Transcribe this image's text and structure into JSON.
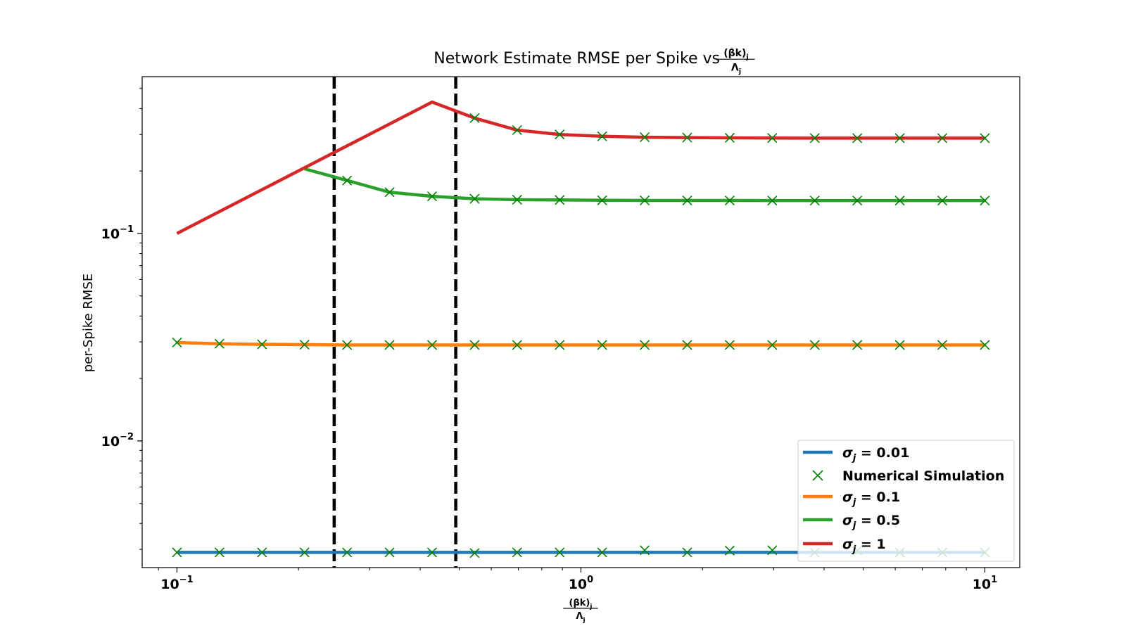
{
  "chart_data": {
    "type": "line",
    "title": "Network Estimate RMSE per Spike vs",
    "title_fraction": {
      "numerator": "(βk)",
      "numerator_sub": "j",
      "denominator": "Λ",
      "denominator_sub": "j"
    },
    "xlabel_fraction": {
      "numerator": "(βk)",
      "numerator_sub": "j",
      "denominator": "Λ",
      "denominator_sub": "j"
    },
    "ylabel": "per-Spike RMSE",
    "x_scale": "log",
    "y_scale": "log",
    "xlim": [
      0.082,
      12.2
    ],
    "ylim": [
      0.00245,
      0.57
    ],
    "x_ticks": [
      {
        "value": 0.1,
        "base": "10",
        "exp": "−1"
      },
      {
        "value": 1,
        "base": "10",
        "exp": "0"
      },
      {
        "value": 10,
        "base": "10",
        "exp": "1"
      }
    ],
    "y_ticks": [
      {
        "value": 0.1,
        "base": "10",
        "exp": "−1"
      },
      {
        "value": 0.01,
        "base": "10",
        "exp": "−2"
      }
    ],
    "vlines": [
      0.245,
      0.49
    ],
    "series": [
      {
        "name": "σ_j = 0.01",
        "label_sigma": "σ",
        "label_sub": "j",
        "label_value": " = 0.01",
        "color": "#1f77b4",
        "x": [
          0.1,
          10
        ],
        "y": [
          0.0029,
          0.0029
        ],
        "markers": {
          "x": [
            0.1,
            0.1274,
            0.1624,
            0.2069,
            0.2637,
            0.336,
            0.4281,
            0.5456,
            0.6952,
            0.8859,
            1.1288,
            1.4384,
            1.833,
            2.3357,
            2.9764,
            3.7927,
            4.8329,
            6.1585,
            7.8476,
            10
          ],
          "y": [
            0.0029,
            0.0029,
            0.0029,
            0.0029,
            0.0029,
            0.0029,
            0.0029,
            0.00288,
            0.0029,
            0.0029,
            0.0029,
            0.00297,
            0.0029,
            0.00296,
            0.00297,
            0.0029,
            0.00296,
            0.0029,
            0.0029,
            0.0029
          ]
        }
      },
      {
        "name": "σ_j = 0.1",
        "label_sigma": "σ",
        "label_sub": "j",
        "label_value": " = 0.1",
        "color": "#ff7f0e",
        "x": [
          0.1,
          0.1274,
          0.1624,
          0.2069,
          0.2637,
          0.336,
          0.4281,
          0.5456,
          0.6952,
          0.8859,
          1.1288,
          1.4384,
          1.833,
          2.3357,
          2.9764,
          3.7927,
          4.8329,
          6.1585,
          7.8476,
          10
        ],
        "y": [
          0.0298,
          0.0294,
          0.0292,
          0.0291,
          0.029,
          0.029,
          0.029,
          0.029,
          0.029,
          0.029,
          0.029,
          0.029,
          0.029,
          0.029,
          0.029,
          0.029,
          0.029,
          0.029,
          0.029,
          0.029
        ],
        "markers": {
          "x": [
            0.1,
            0.1274,
            0.1624,
            0.2069,
            0.2637,
            0.336,
            0.4281,
            0.5456,
            0.6952,
            0.8859,
            1.1288,
            1.4384,
            1.833,
            2.3357,
            2.9764,
            3.7927,
            4.8329,
            6.1585,
            7.8476,
            10
          ],
          "y": [
            0.0298,
            0.0294,
            0.0292,
            0.0291,
            0.029,
            0.029,
            0.029,
            0.029,
            0.029,
            0.029,
            0.029,
            0.029,
            0.029,
            0.029,
            0.029,
            0.029,
            0.029,
            0.029,
            0.029,
            0.029
          ]
        }
      },
      {
        "name": "σ_j = 0.5",
        "label_sigma": "σ",
        "label_sub": "j",
        "label_value": " = 0.5",
        "color": "#2ca02c",
        "x": [
          0.2069,
          0.2637,
          0.336,
          0.4281,
          0.5456,
          0.6952,
          0.8859,
          1.1288,
          1.4384,
          1.833,
          2.3357,
          2.9764,
          3.7927,
          4.8329,
          6.1585,
          7.8476,
          10
        ],
        "y": [
          0.205,
          0.18,
          0.158,
          0.151,
          0.147,
          0.1455,
          0.145,
          0.1445,
          0.1443,
          0.1442,
          0.1442,
          0.1441,
          0.1441,
          0.1441,
          0.1441,
          0.1441,
          0.1441
        ],
        "markers": {
          "x": [
            0.2637,
            0.336,
            0.4281,
            0.5456,
            0.6952,
            0.8859,
            1.1288,
            1.4384,
            1.833,
            2.3357,
            2.9764,
            3.7927,
            4.8329,
            6.1585,
            7.8476,
            10
          ],
          "y": [
            0.18,
            0.158,
            0.151,
            0.147,
            0.1455,
            0.145,
            0.1445,
            0.1443,
            0.1442,
            0.1442,
            0.1441,
            0.1441,
            0.1441,
            0.1441,
            0.1441,
            0.1441
          ]
        }
      },
      {
        "name": "σ_j = 1",
        "label_sigma": "σ",
        "label_sub": "j",
        "label_value": " = 1",
        "color": "#d62728",
        "x": [
          0.1,
          0.4281,
          0.5456,
          0.6952,
          0.8859,
          1.1288,
          1.4384,
          1.833,
          2.3357,
          2.9764,
          3.7927,
          4.8329,
          6.1585,
          7.8476,
          10
        ],
        "y": [
          0.1,
          0.43,
          0.36,
          0.315,
          0.3,
          0.294,
          0.291,
          0.29,
          0.289,
          0.2885,
          0.2882,
          0.2881,
          0.288,
          0.288,
          0.288
        ],
        "markers": {
          "x": [
            0.5456,
            0.6952,
            0.8859,
            1.1288,
            1.4384,
            1.833,
            2.3357,
            2.9764,
            3.7927,
            4.8329,
            6.1585,
            7.8476,
            10
          ],
          "y": [
            0.36,
            0.315,
            0.3,
            0.294,
            0.291,
            0.29,
            0.289,
            0.2885,
            0.2882,
            0.2881,
            0.288,
            0.288,
            0.288
          ]
        }
      }
    ],
    "marker_series": {
      "name": "Numerical Simulation",
      "color": "#008000",
      "marker": "x"
    },
    "legend": {
      "placement": "lower-right",
      "entries": [
        {
          "kind": "line",
          "series": 0
        },
        {
          "kind": "marker",
          "label": "Numerical Simulation"
        },
        {
          "kind": "line",
          "series": 1
        },
        {
          "kind": "line",
          "series": 2
        },
        {
          "kind": "line",
          "series": 3
        }
      ]
    }
  }
}
